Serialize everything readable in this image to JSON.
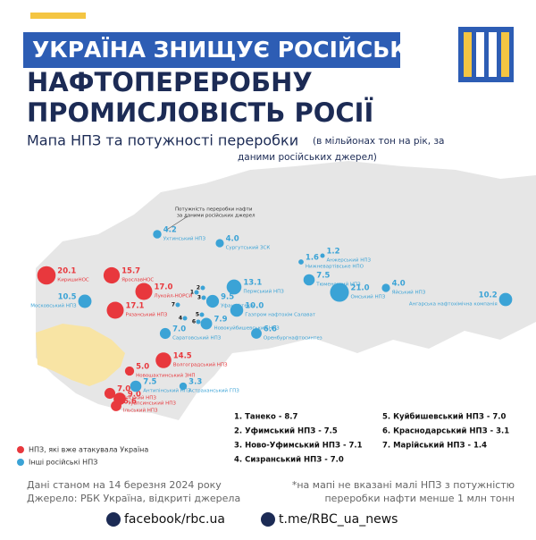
{
  "header": {
    "title_lines": [
      "УКРАЇНА ЗНИЩУЄ РОСІЙСЬКУ",
      "НАФТОПЕРЕРОБНУ",
      "ПРОМИСЛОВІСТЬ РОСІЇ"
    ],
    "subtitle": "Мапа НПЗ та потужності переробки",
    "subtitle_note_lines": [
      "(в мільйонах тон на рік, за",
      "даними російських джерел)"
    ]
  },
  "map": {
    "annotation_lines": [
      "Потужність переробки нафти",
      "за даними російських джерел"
    ],
    "refineries": [
      {
        "name": "КиришиНОС",
        "value": 20.1,
        "attacked": true
      },
      {
        "name": "ЯрославНОС",
        "value": 15.7,
        "attacked": true
      },
      {
        "name": "Лукойл-НОРСИ",
        "value": 17.0,
        "value_label": "17.0",
        "attacked": true
      },
      {
        "name": "Рязанський НПЗ",
        "value": 17.1,
        "attacked": true
      },
      {
        "name": "Волгоградський НПЗ",
        "value": 14.5,
        "attacked": true
      },
      {
        "name": "Новошахтинський ЗНП",
        "value": 5.0,
        "value_label": "5.0",
        "attacked": true
      },
      {
        "name": "Афіпський НПЗ",
        "value": 7.0,
        "value_label": "7.0",
        "attacked": true
      },
      {
        "name": "Туапсинський НПЗ",
        "value": 9.0,
        "value_label": "9.0",
        "attacked": true
      },
      {
        "name": "Ільський НПЗ",
        "value": 6.6,
        "attacked": true
      },
      {
        "name": "Ухтинський НПЗ",
        "value": 4.2,
        "attacked": false
      },
      {
        "name": "Сургутський ЗСК",
        "value": 4.0,
        "value_label": "4.0",
        "attacked": false
      },
      {
        "name": "Анжерський НПЗ",
        "value": 1.2,
        "attacked": false
      },
      {
        "name": "Нижневартівське НПО",
        "value": 1.6,
        "attacked": false
      },
      {
        "name": "Тюменський НПЗ",
        "value": 7.5,
        "attacked": false
      },
      {
        "name": "Омський НПЗ",
        "value": 21.0,
        "value_label": "21.0",
        "attacked": false
      },
      {
        "name": "Яйський НПЗ",
        "value": 4.0,
        "value_label": "4.0",
        "attacked": false
      },
      {
        "name": "Ангарська нафтохімічна компанія",
        "value": 10.2,
        "attacked": false
      },
      {
        "name": "Пермський НПЗ",
        "value": 13.1,
        "attacked": false
      },
      {
        "name": "Московський НПЗ",
        "value": 10.5,
        "attacked": false
      },
      {
        "name": "Уфанефтехім",
        "value": 9.5,
        "attacked": false
      },
      {
        "name": "Газпром нафтохім Салават",
        "value": 10.0,
        "value_label": "10.0",
        "attacked": false
      },
      {
        "name": "Новокуйбишевський НПЗ",
        "value": 7.9,
        "attacked": false
      },
      {
        "name": "Оренбургнафтосинтез",
        "value": 6.6,
        "attacked": false
      },
      {
        "name": "Саратовський НПЗ",
        "value": 7.0,
        "value_label": "7.0",
        "attacked": false
      },
      {
        "name": "Антипінський НПЗ",
        "value": 7.5,
        "attacked": false
      },
      {
        "name": "Астраханський ГПЗ",
        "value": 3.3,
        "attacked": false
      }
    ],
    "numbered_markers": [
      "1",
      "2",
      "3",
      "4",
      "5",
      "6",
      "7"
    ],
    "numbered_list": [
      "1. Танеко - 8.7",
      "2. Уфимський НПЗ - 7.5",
      "3. Ново-Уфимський НПЗ - 7.1",
      "4. Сизранський НПЗ - 7.0",
      "5. Куйбишевський НПЗ - 7.0",
      "6. Краснодарський НПЗ - 3.1",
      "7. Марійський НПЗ - 1.4"
    ],
    "legend": [
      "НПЗ, які вже атакувала Україна",
      "Інші російські НПЗ"
    ]
  },
  "footer": {
    "date": "Дані станом на 14 березня 2024 року",
    "source": "Джерело: РБК Україна, відкриті джерела",
    "note_lines": [
      "*на мапі не вказані малі НПЗ з потужністю",
      "переробки нафти менше 1 млн тонн"
    ],
    "facebook": "facebook/rbc.ua",
    "telegram": "t.me/RBC_ua_news"
  }
}
